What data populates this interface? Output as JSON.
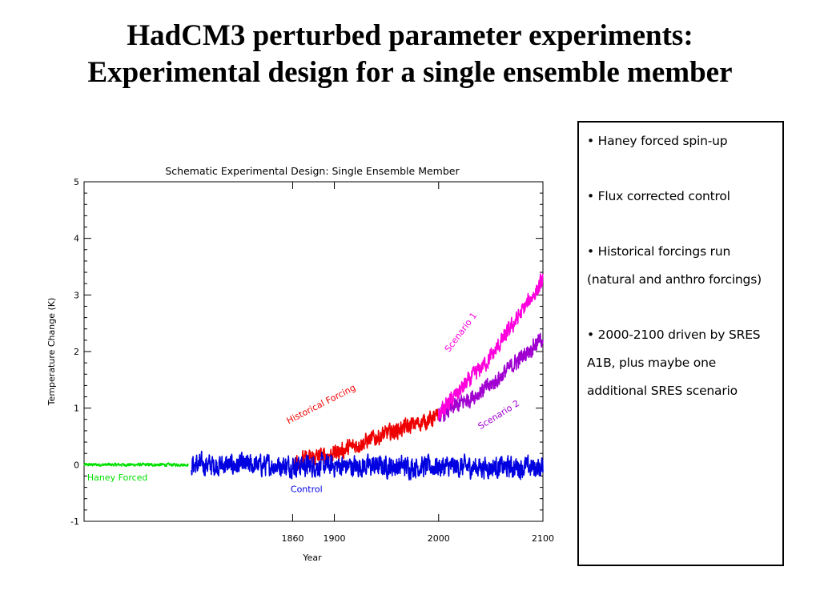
{
  "slide": {
    "title_line1": "HadCM3 perturbed parameter experiments:",
    "title_line2": "Experimental design for a single ensemble member"
  },
  "bullets": [
    "• Haney forced spin-up",
    "• Flux corrected control",
    "• Historical forcings run (natural and anthro forcings)",
    "• 2000-2100 driven by SRES A1B, plus maybe one additional SRES scenario"
  ],
  "chart_data": {
    "type": "line",
    "title": "Schematic Experimental Design: Single Ensemble Member",
    "xlabel": "Year",
    "ylabel": "Temperature Change (K)",
    "xlim": [
      1660,
      2100
    ],
    "ylim": [
      -1,
      5
    ],
    "x_ticks": [
      1860,
      1900,
      2000,
      2100
    ],
    "y_ticks": [
      -1,
      0,
      1,
      2,
      3,
      4,
      5
    ],
    "grid": false,
    "series": [
      {
        "name": "Haney Forced",
        "color": "#00e000",
        "x_range": [
          1660,
          1760
        ],
        "trend": [
          [
            1660,
            0.0
          ],
          [
            1760,
            0.0
          ]
        ],
        "noise_k": 0.04
      },
      {
        "name": "Control",
        "color": "#0000e0",
        "x_range": [
          1763,
          2100
        ],
        "trend": [
          [
            1763,
            0.0
          ],
          [
            2100,
            -0.05
          ]
        ],
        "noise_k": 0.28
      },
      {
        "name": "Historical Forcing",
        "color": "#ee0000",
        "x_range": [
          1860,
          2000
        ],
        "trend": [
          [
            1860,
            0.05
          ],
          [
            1900,
            0.2
          ],
          [
            1950,
            0.55
          ],
          [
            2000,
            0.85
          ]
        ],
        "noise_k": 0.22
      },
      {
        "name": "Scenario 1",
        "color": "#ff00dd",
        "x_range": [
          2000,
          2100
        ],
        "trend": [
          [
            2000,
            0.9
          ],
          [
            2050,
            1.9
          ],
          [
            2100,
            3.25
          ]
        ],
        "noise_k": 0.22
      },
      {
        "name": "Scenario 2",
        "color": "#a000d0",
        "x_range": [
          2000,
          2100
        ],
        "trend": [
          [
            2000,
            0.85
          ],
          [
            2050,
            1.4
          ],
          [
            2100,
            2.25
          ]
        ],
        "noise_k": 0.22
      }
    ],
    "annotations": [
      {
        "text": "Haney Forced",
        "series": 0
      },
      {
        "text": "Control",
        "series": 1
      },
      {
        "text": "Historical Forcing",
        "series": 2
      },
      {
        "text": "Scenario 1",
        "series": 3
      },
      {
        "text": "Scenario 2",
        "series": 4
      }
    ]
  }
}
